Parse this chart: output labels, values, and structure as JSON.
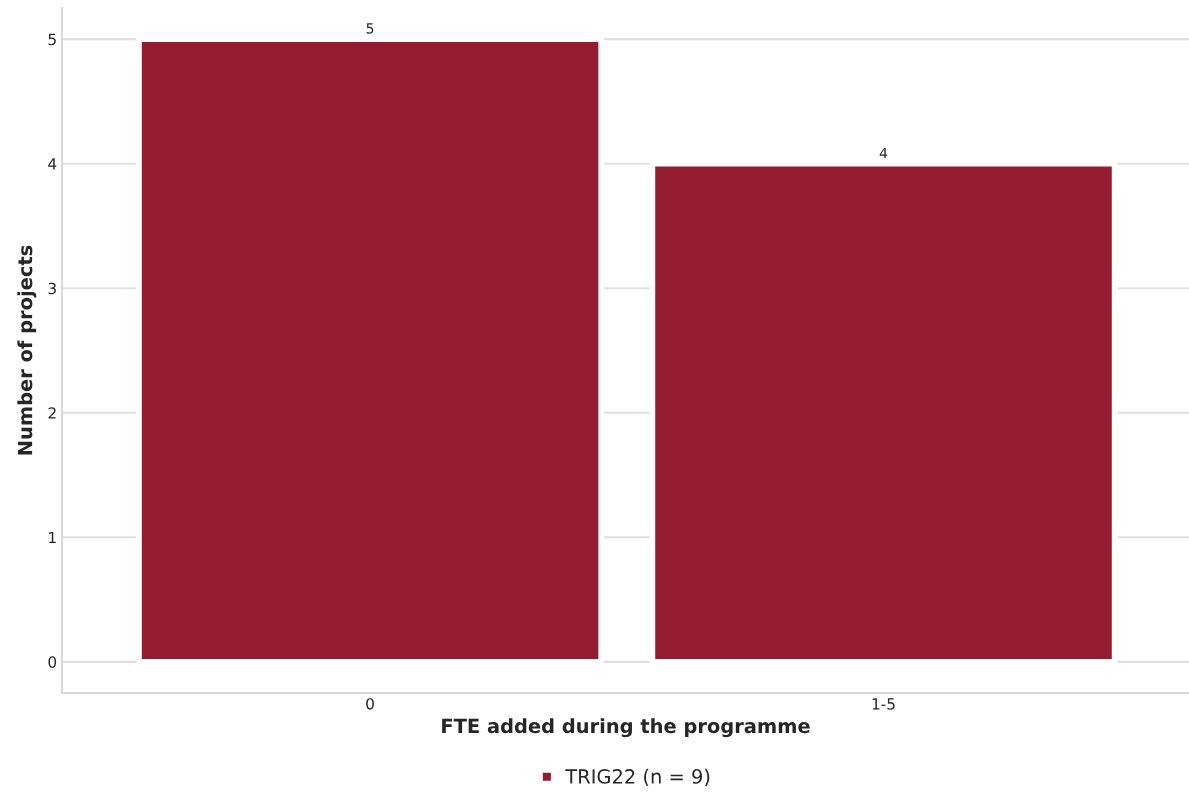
{
  "chart_data": {
    "type": "bar",
    "xlabel": "FTE added during the programme",
    "ylabel": "Number of projects",
    "categories": [
      "0",
      "1-5"
    ],
    "series": [
      {
        "name": "TRIG22 (n = 9)",
        "color": "#941c30",
        "values": [
          5,
          4
        ]
      }
    ],
    "ylim": [
      -0.25,
      5.25
    ],
    "yticks": [
      0,
      1,
      2,
      3,
      4,
      5
    ],
    "grid": "y",
    "legend": "bottom",
    "data_labels": true
  }
}
